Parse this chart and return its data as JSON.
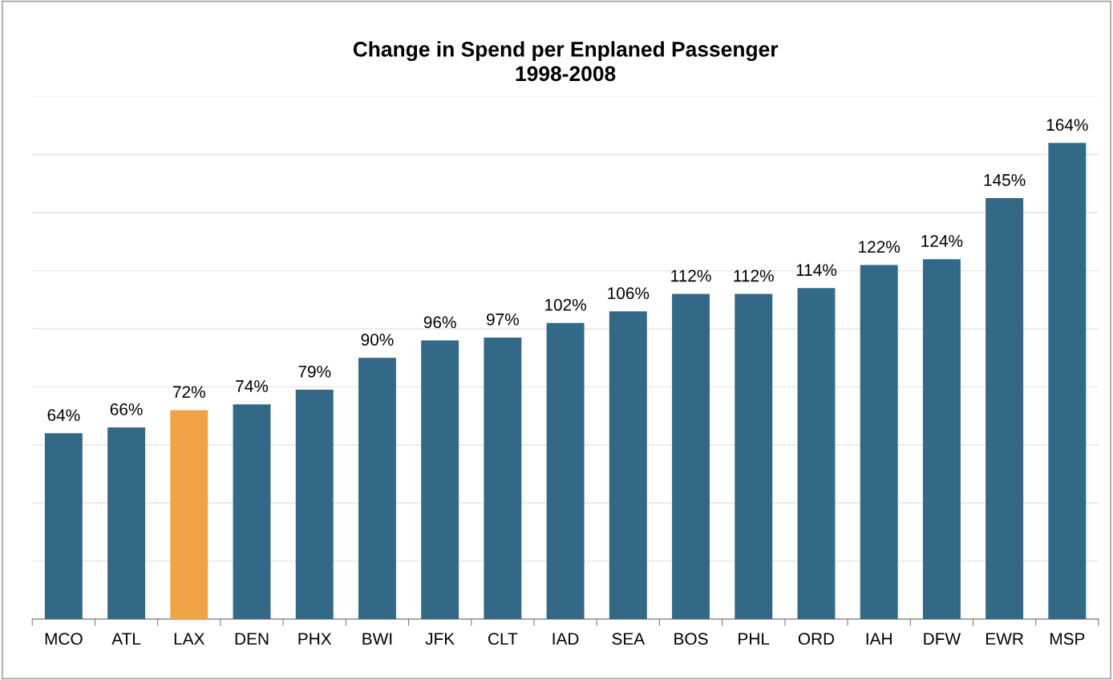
{
  "chart_data": {
    "type": "bar",
    "title": "Change in Spend per Enplaned Passenger\n1998-2008",
    "categories": [
      "MCO",
      "ATL",
      "LAX",
      "DEN",
      "PHX",
      "BWI",
      "JFK",
      "CLT",
      "IAD",
      "SEA",
      "BOS",
      "PHL",
      "ORD",
      "IAH",
      "DFW",
      "EWR",
      "MSP"
    ],
    "values": [
      64,
      66,
      72,
      74,
      79,
      90,
      96,
      97,
      102,
      106,
      112,
      112,
      114,
      122,
      124,
      145,
      164
    ],
    "value_labels": [
      "64%",
      "66%",
      "72%",
      "74%",
      "79%",
      "90%",
      "96%",
      "97%",
      "102%",
      "106%",
      "112%",
      "112%",
      "114%",
      "122%",
      "124%",
      "145%",
      "164%"
    ],
    "colors": [
      "#336887",
      "#336887",
      "#f0a445",
      "#336887",
      "#336887",
      "#336887",
      "#336887",
      "#336887",
      "#336887",
      "#336887",
      "#336887",
      "#336887",
      "#336887",
      "#336887",
      "#336887",
      "#336887",
      "#336887"
    ],
    "ylim": [
      0,
      180
    ],
    "yticks": [
      {
        "value": 20,
        "label": null
      },
      {
        "value": 40,
        "label": null
      },
      {
        "value": 60,
        "label": null
      },
      {
        "value": 80,
        "label": null
      },
      {
        "value": 100,
        "label": null
      },
      {
        "value": 120,
        "label": null
      },
      {
        "value": 140,
        "label": null
      },
      {
        "value": 160,
        "label": null
      },
      {
        "value": 180,
        "label": null
      }
    ],
    "grid": "y",
    "tick_labels": "x",
    "legend": false
  }
}
